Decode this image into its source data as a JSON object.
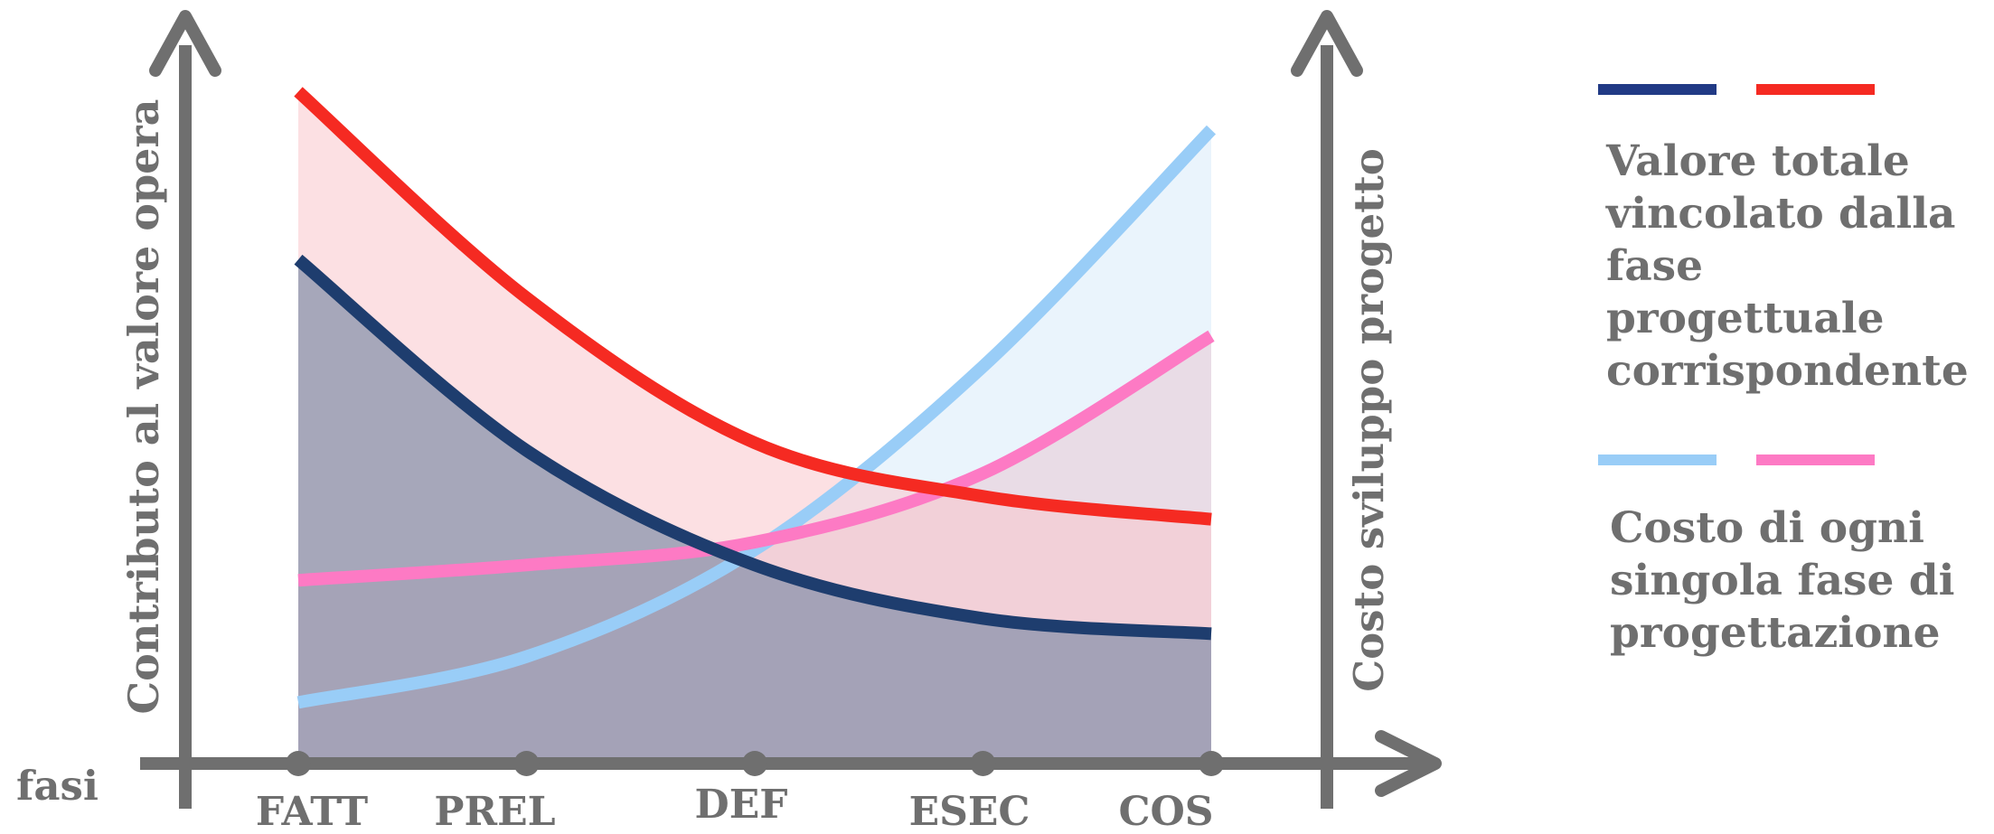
{
  "chart_data": {
    "type": "area",
    "categories": [
      "FATT",
      "PREL",
      "DEF",
      "ESEC",
      "COS"
    ],
    "x_axis_label": "fasi",
    "y_left_label": "Contributo al valore opera",
    "y_right_label": "Costo sviluppo progetto",
    "grid": false,
    "legend_position": "right",
    "series": [
      {
        "axis": "left",
        "color": "#1e3d6e",
        "fill": "#8590ab",
        "values": [
          0.66,
          0.41,
          0.26,
          0.19,
          0.17
        ]
      },
      {
        "axis": "left",
        "color": "#f52a22",
        "fill": "#f9c7cc",
        "values": [
          0.88,
          0.61,
          0.42,
          0.35,
          0.32
        ]
      },
      {
        "axis": "right",
        "color": "#99cdf7",
        "fill": "#d9ebfa",
        "values": [
          0.08,
          0.14,
          0.28,
          0.52,
          0.83
        ]
      },
      {
        "axis": "right",
        "color": "#fd7ac4",
        "fill": "#e8c9d3",
        "values": [
          0.24,
          0.26,
          0.29,
          0.38,
          0.56
        ]
      }
    ]
  },
  "legend": {
    "group1": {
      "colors": [
        "#213a85",
        "#f52a22"
      ],
      "text": [
        "Valore totale",
        "vincolato dalla",
        "fase progettuale",
        "corrispondente"
      ]
    },
    "group2": {
      "colors": [
        "#99cdf7",
        "#fd7ac4"
      ],
      "text": [
        "Costo di ogni",
        "singola fase di",
        "progettazione"
      ]
    }
  },
  "colors": {
    "axis": "#6f6f6f"
  }
}
